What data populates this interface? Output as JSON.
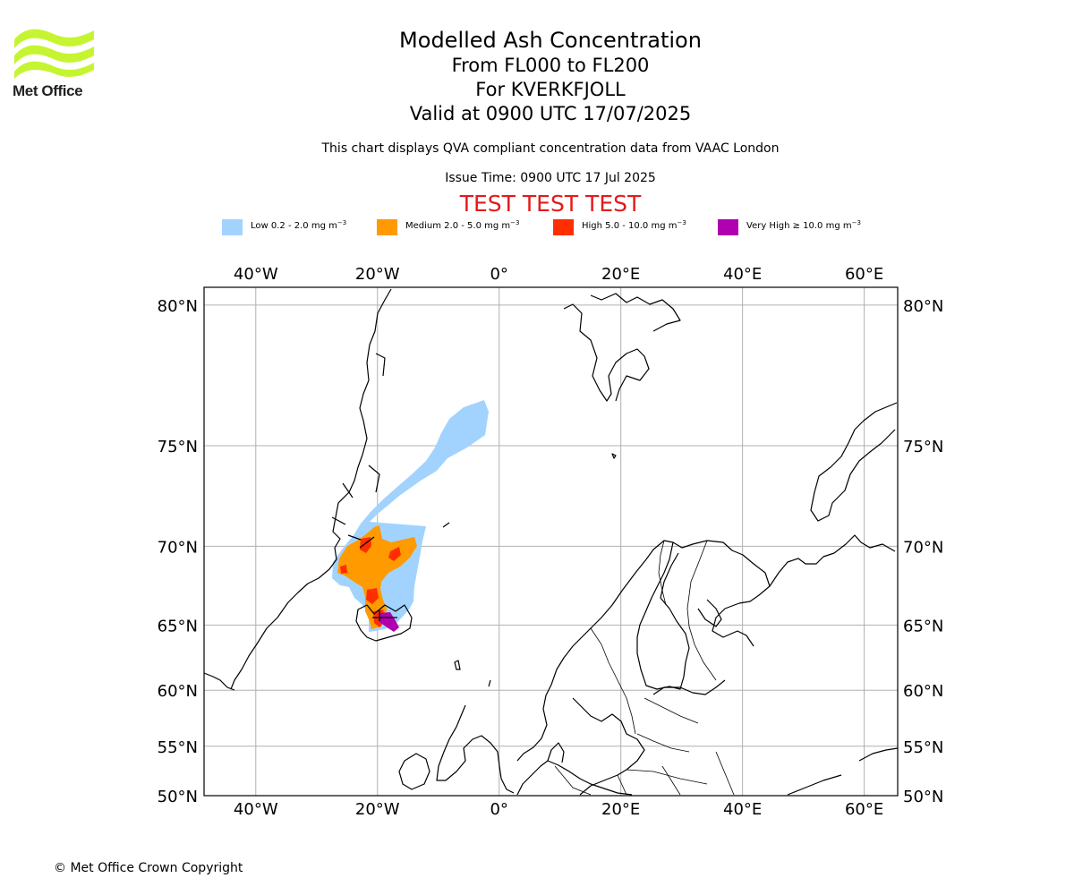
{
  "logo": {
    "text": "Met Office"
  },
  "title": {
    "line1": "Modelled Ash Concentration",
    "line2": "From FL000 to FL200",
    "line3": "For KVERKFJOLL",
    "line4": "Valid at 0900 UTC 17/07/2025"
  },
  "description": "This chart displays QVA compliant concentration data from VAAC London",
  "issue_time": "Issue Time: 0900 UTC 17 Jul 2025",
  "test_banner": "TEST TEST TEST",
  "legend": [
    {
      "label": "Low 0.2 - 2.0 mg m",
      "unit_exp": "−3",
      "color": "#a2d3ff"
    },
    {
      "label": "Medium 2.0 - 5.0 mg m",
      "unit_exp": "−3",
      "color": "#ff9a00"
    },
    {
      "label": "High 5.0 - 10.0 mg m",
      "unit_exp": "−3",
      "color": "#ff2e00"
    },
    {
      "label": "Very High  ≥  10.0 mg m",
      "unit_exp": "−3",
      "color": "#b000b0"
    }
  ],
  "map": {
    "lon_range": [
      -48.5,
      65.5
    ],
    "lat_range": [
      50,
      80.5
    ],
    "lon_ticks": [
      {
        "value": -40,
        "label": "40°W"
      },
      {
        "value": -20,
        "label": "20°W"
      },
      {
        "value": 0,
        "label": "0°"
      },
      {
        "value": 20,
        "label": "20°E"
      },
      {
        "value": 40,
        "label": "40°E"
      },
      {
        "value": 60,
        "label": "60°E"
      }
    ],
    "lat_ticks": [
      {
        "value": 80,
        "label": "80°N"
      },
      {
        "value": 75,
        "label": "75°N"
      },
      {
        "value": 70,
        "label": "70°N"
      },
      {
        "value": 65,
        "label": "65°N"
      },
      {
        "value": 60,
        "label": "60°N"
      },
      {
        "value": 55,
        "label": "55°N"
      },
      {
        "value": 50,
        "label": "50°N"
      }
    ],
    "grid": true
  },
  "copyright": "© Met Office Crown Copyright"
}
